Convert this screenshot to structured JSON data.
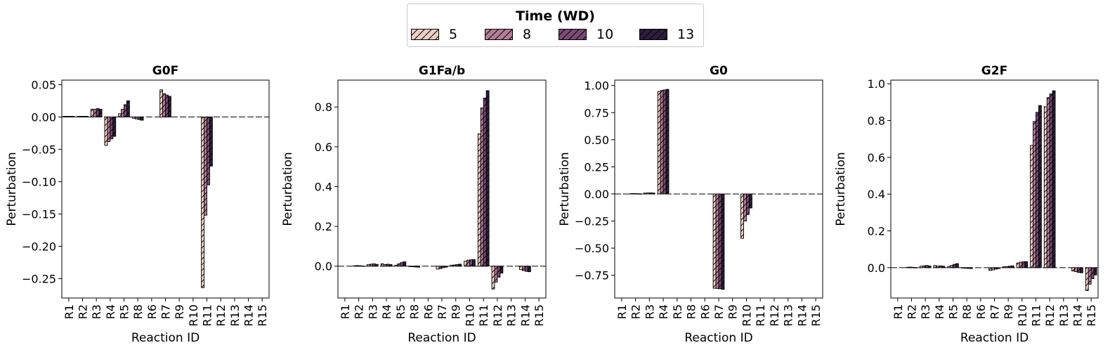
{
  "legend": {
    "title": "Time (WD)",
    "entries": [
      "5",
      "8",
      "10",
      "13"
    ],
    "colors": [
      "#ebcdc3",
      "#b57d97",
      "#7c4a76",
      "#2e1e3c"
    ]
  },
  "chart_data": [
    {
      "type": "bar",
      "title": "G0F",
      "xlabel": "Reaction ID",
      "ylabel": "Perturbation",
      "ylim": [
        -0.28,
        0.057
      ],
      "yticks": [
        0.05,
        0.0,
        -0.05,
        -0.1,
        -0.15,
        -0.2,
        -0.25
      ],
      "ytick_labels": [
        "0.05",
        "0.00",
        "−0.05",
        "−0.10",
        "−0.15",
        "−0.20",
        "−0.25"
      ],
      "categories": [
        "R1",
        "R2",
        "R3",
        "R4",
        "R5",
        "R6",
        "R7",
        "R8",
        "R9",
        "R10",
        "R11",
        "R12",
        "R13",
        "R14",
        "R15"
      ],
      "bar_order": [
        "R1",
        "R2",
        "R3",
        "R4",
        "R5",
        "R8",
        "R6",
        "R7",
        "R9",
        "R10",
        "R11",
        "R12",
        "R13",
        "R14",
        "R15"
      ],
      "series": [
        {
          "name": "5",
          "values": [
            0.001,
            0.001,
            0.012,
            -0.044,
            0.005,
            -0.002,
            0,
            0.042,
            0,
            0,
            -0.264,
            0,
            0,
            0,
            0
          ]
        },
        {
          "name": "8",
          "values": [
            0.001,
            0.001,
            0.012,
            -0.038,
            0.012,
            -0.003,
            0,
            0.036,
            0,
            0,
            -0.152,
            0,
            0,
            0,
            0
          ]
        },
        {
          "name": "10",
          "values": [
            0.001,
            0.001,
            0.013,
            -0.034,
            0.019,
            -0.004,
            0,
            0.034,
            0,
            0,
            -0.105,
            0,
            0,
            0,
            0
          ]
        },
        {
          "name": "13",
          "values": [
            0.001,
            0.001,
            0.012,
            -0.03,
            0.025,
            -0.005,
            0,
            0.032,
            0,
            0,
            -0.076,
            0,
            0,
            0,
            0
          ]
        }
      ]
    },
    {
      "type": "bar",
      "title": "G1Fa/b",
      "xlabel": "Reaction ID",
      "ylabel": "Perturbation",
      "ylim": [
        -0.16,
        0.935
      ],
      "yticks": [
        0.8,
        0.6,
        0.4,
        0.2,
        0.0
      ],
      "ytick_labels": [
        "0.8",
        "0.6",
        "0.4",
        "0.2",
        "0.0"
      ],
      "categories": [
        "R1",
        "R2",
        "R3",
        "R4",
        "R5",
        "R6",
        "R7",
        "R8",
        "R9",
        "R10",
        "R11",
        "R12",
        "R13",
        "R14",
        "R15"
      ],
      "bar_order": [
        "R1",
        "R2",
        "R3",
        "R4",
        "R5",
        "R8",
        "R6",
        "R7",
        "R9",
        "R10",
        "R11",
        "R12",
        "R13",
        "R14",
        "R15"
      ],
      "series": [
        {
          "name": "5",
          "values": [
            0.0,
            0.002,
            0.008,
            0.012,
            0.005,
            -0.002,
            0,
            -0.015,
            0.005,
            0.025,
            0.665,
            -0.115,
            0,
            -0.018,
            0
          ]
        },
        {
          "name": "8",
          "values": [
            0.0,
            0.003,
            0.01,
            0.008,
            0.012,
            -0.003,
            0,
            -0.012,
            0.006,
            0.03,
            0.795,
            -0.08,
            0,
            -0.022,
            0
          ]
        },
        {
          "name": "10",
          "values": [
            0.0,
            0.002,
            0.012,
            0.01,
            0.018,
            -0.004,
            0,
            -0.008,
            0.008,
            0.032,
            0.845,
            -0.055,
            0,
            -0.026,
            0
          ]
        },
        {
          "name": "13",
          "values": [
            0.0,
            0.001,
            0.009,
            0.008,
            0.022,
            -0.005,
            0,
            -0.005,
            0.01,
            0.033,
            0.882,
            -0.035,
            0,
            -0.028,
            0
          ]
        }
      ]
    },
    {
      "type": "bar",
      "title": "G0",
      "xlabel": "Reaction ID",
      "ylabel": "Perturbation",
      "ylim": [
        -0.96,
        1.05
      ],
      "yticks": [
        1.0,
        0.75,
        0.5,
        0.25,
        0.0,
        -0.25,
        -0.5,
        -0.75
      ],
      "ytick_labels": [
        "1.00",
        "0.75",
        "0.50",
        "0.25",
        "0.00",
        "−0.25",
        "−0.50",
        "−0.75"
      ],
      "categories": [
        "R1",
        "R2",
        "R3",
        "R4",
        "R5",
        "R6",
        "R7",
        "R8",
        "R9",
        "R10",
        "R11",
        "R12",
        "R13",
        "R14",
        "R15"
      ],
      "bar_order": [
        "R1",
        "R2",
        "R3",
        "R4",
        "R5",
        "R8",
        "R6",
        "R7",
        "R9",
        "R10",
        "R11",
        "R12",
        "R13",
        "R14",
        "R15"
      ],
      "series": [
        {
          "name": "5",
          "values": [
            0.0,
            0.003,
            0.008,
            0.945,
            0,
            0,
            0,
            -0.87,
            0,
            -0.41,
            0,
            0,
            0,
            0,
            0
          ]
        },
        {
          "name": "8",
          "values": [
            0.0,
            0.004,
            0.009,
            0.955,
            0,
            0,
            0,
            -0.872,
            0,
            -0.25,
            0,
            0,
            0,
            0,
            0
          ]
        },
        {
          "name": "10",
          "values": [
            0.0,
            0.003,
            0.01,
            0.96,
            0,
            0,
            0,
            -0.875,
            0,
            -0.19,
            0,
            0,
            0,
            0,
            0
          ]
        },
        {
          "name": "13",
          "values": [
            0.0,
            0.002,
            0.008,
            0.965,
            0,
            0,
            0,
            -0.88,
            0,
            -0.13,
            0,
            0,
            0,
            0,
            0
          ]
        }
      ]
    },
    {
      "type": "bar",
      "title": "G2F",
      "xlabel": "Reaction ID",
      "ylabel": "Perturbation",
      "ylim": [
        -0.165,
        1.02
      ],
      "yticks": [
        1.0,
        0.8,
        0.6,
        0.4,
        0.2,
        0.0
      ],
      "ytick_labels": [
        "1.0",
        "0.8",
        "0.6",
        "0.4",
        "0.2",
        "0.0"
      ],
      "categories": [
        "R1",
        "R2",
        "R3",
        "R4",
        "R5",
        "R6",
        "R7",
        "R8",
        "R9",
        "R10",
        "R11",
        "R12",
        "R13",
        "R14",
        "R15"
      ],
      "bar_order": [
        "R1",
        "R2",
        "R3",
        "R4",
        "R5",
        "R8",
        "R6",
        "R7",
        "R9",
        "R10",
        "R11",
        "R12",
        "R13",
        "R14",
        "R15"
      ],
      "series": [
        {
          "name": "5",
          "values": [
            0.0,
            0.002,
            0.008,
            0.012,
            0.005,
            -0.002,
            0,
            -0.015,
            0.005,
            0.025,
            0.665,
            0.875,
            0,
            -0.018,
            -0.125
          ]
        },
        {
          "name": "8",
          "values": [
            0.0,
            0.003,
            0.01,
            0.008,
            0.012,
            -0.003,
            0,
            -0.012,
            0.006,
            0.03,
            0.795,
            0.925,
            0,
            -0.022,
            -0.09
          ]
        },
        {
          "name": "10",
          "values": [
            0.0,
            0.002,
            0.012,
            0.01,
            0.018,
            -0.004,
            0,
            -0.008,
            0.008,
            0.032,
            0.845,
            0.945,
            0,
            -0.026,
            -0.06
          ]
        },
        {
          "name": "13",
          "values": [
            0.0,
            0.001,
            0.009,
            0.008,
            0.022,
            -0.005,
            0,
            -0.005,
            0.01,
            0.033,
            0.882,
            0.962,
            0,
            -0.028,
            -0.04
          ]
        }
      ]
    }
  ]
}
